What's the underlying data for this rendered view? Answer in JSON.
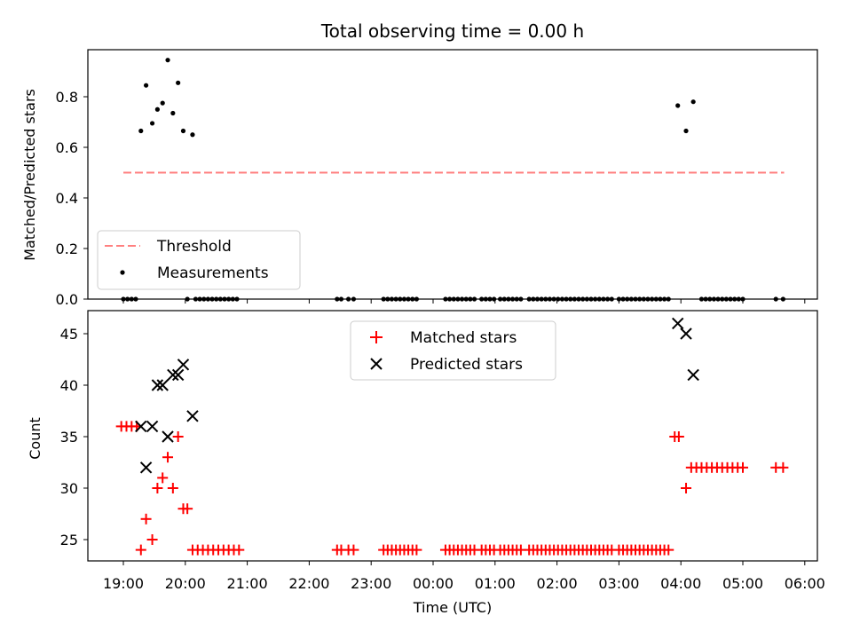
{
  "chart_data": [
    {
      "type": "scatter",
      "title": "Total observing time = 0.00 h",
      "ylabel": "Matched/Predicted stars",
      "xlabel": "",
      "ylim": [
        0,
        1.0
      ],
      "yticks": [
        "0.0",
        "0.2",
        "0.4",
        "0.6",
        "0.8"
      ],
      "threshold": {
        "name": "Threshold",
        "value": 0.5,
        "x_start": "19:00",
        "x_end": "05:40",
        "color": "#ff8080"
      },
      "measurements": {
        "name": "Measurements",
        "color": "#000000",
        "points": [
          [
            "19:17",
            0.665
          ],
          [
            "19:22",
            0.845
          ],
          [
            "19:28",
            0.695
          ],
          [
            "19:33",
            0.75
          ],
          [
            "19:38",
            0.775
          ],
          [
            "19:43",
            0.945
          ],
          [
            "19:48",
            0.735
          ],
          [
            "19:53",
            0.855
          ],
          [
            "19:58",
            0.665
          ],
          [
            "20:07",
            0.65
          ],
          [
            "03:57",
            0.765
          ],
          [
            "04:05",
            0.665
          ],
          [
            "04:12",
            0.78
          ]
        ],
        "zero_times": [
          "19:00",
          "19:04",
          "19:08",
          "19:12",
          "20:02",
          "20:10",
          "20:14",
          "20:18",
          "20:22",
          "20:26",
          "20:30",
          "20:34",
          "20:38",
          "20:42",
          "20:46",
          "20:50",
          "22:27",
          "22:31",
          "22:38",
          "22:43",
          "23:12",
          "23:16",
          "23:20",
          "23:24",
          "23:28",
          "23:32",
          "23:36",
          "23:40",
          "23:44",
          "00:12",
          "00:16",
          "00:20",
          "00:24",
          "00:28",
          "00:32",
          "00:36",
          "00:40",
          "00:47",
          "00:51",
          "00:55",
          "00:59",
          "01:05",
          "01:09",
          "01:13",
          "01:17",
          "01:21",
          "01:25",
          "01:33",
          "01:37",
          "01:41",
          "01:45",
          "01:49",
          "01:53",
          "01:57",
          "02:01",
          "02:05",
          "02:09",
          "02:13",
          "02:17",
          "02:21",
          "02:25",
          "02:29",
          "02:33",
          "02:37",
          "02:41",
          "02:45",
          "02:49",
          "02:53",
          "03:00",
          "03:04",
          "03:08",
          "03:12",
          "03:16",
          "03:20",
          "03:24",
          "03:28",
          "03:32",
          "03:36",
          "03:40",
          "03:44",
          "03:48",
          "04:20",
          "04:24",
          "04:28",
          "04:32",
          "04:36",
          "04:40",
          "04:44",
          "04:48",
          "04:52",
          "04:56",
          "05:00",
          "05:32",
          "05:39"
        ]
      },
      "legend_position": "lower-left",
      "grid": false
    },
    {
      "type": "scatter",
      "title": "",
      "ylabel": "Count",
      "xlabel": "Time (UTC)",
      "ylim": [
        23,
        47.5
      ],
      "yticks": [
        "25",
        "30",
        "35",
        "40",
        "45"
      ],
      "x_ticks": [
        "19:00",
        "20:00",
        "21:00",
        "22:00",
        "23:00",
        "00:00",
        "01:00",
        "02:00",
        "03:00",
        "04:00",
        "05:00",
        "06:00"
      ],
      "series": [
        {
          "name": "Matched stars",
          "marker": "plus",
          "color": "#ff0000",
          "points": [
            [
              "18:58",
              36
            ],
            [
              "19:03",
              36
            ],
            [
              "19:08",
              36
            ],
            [
              "19:13",
              36
            ],
            [
              "19:17",
              24
            ],
            [
              "19:22",
              27
            ],
            [
              "19:28",
              25
            ],
            [
              "19:33",
              30
            ],
            [
              "19:38",
              31
            ],
            [
              "19:43",
              33
            ],
            [
              "19:48",
              30
            ],
            [
              "19:53",
              35
            ],
            [
              "19:58",
              28
            ],
            [
              "20:02",
              28
            ],
            [
              "20:07",
              24
            ],
            [
              "20:12",
              24
            ],
            [
              "20:17",
              24
            ],
            [
              "20:22",
              24
            ],
            [
              "20:27",
              24
            ],
            [
              "20:32",
              24
            ],
            [
              "20:37",
              24
            ],
            [
              "20:42",
              24
            ],
            [
              "20:47",
              24
            ],
            [
              "20:52",
              24
            ],
            [
              "22:27",
              24
            ],
            [
              "22:31",
              24
            ],
            [
              "22:38",
              24
            ],
            [
              "22:43",
              24
            ],
            [
              "23:12",
              24
            ],
            [
              "23:16",
              24
            ],
            [
              "23:20",
              24
            ],
            [
              "23:24",
              24
            ],
            [
              "23:28",
              24
            ],
            [
              "23:32",
              24
            ],
            [
              "23:36",
              24
            ],
            [
              "23:40",
              24
            ],
            [
              "23:44",
              24
            ],
            [
              "00:12",
              24
            ],
            [
              "00:16",
              24
            ],
            [
              "00:20",
              24
            ],
            [
              "00:24",
              24
            ],
            [
              "00:28",
              24
            ],
            [
              "00:32",
              24
            ],
            [
              "00:36",
              24
            ],
            [
              "00:40",
              24
            ],
            [
              "00:47",
              24
            ],
            [
              "00:51",
              24
            ],
            [
              "00:55",
              24
            ],
            [
              "00:59",
              24
            ],
            [
              "01:05",
              24
            ],
            [
              "01:09",
              24
            ],
            [
              "01:13",
              24
            ],
            [
              "01:17",
              24
            ],
            [
              "01:21",
              24
            ],
            [
              "01:25",
              24
            ],
            [
              "01:33",
              24
            ],
            [
              "01:37",
              24
            ],
            [
              "01:41",
              24
            ],
            [
              "01:45",
              24
            ],
            [
              "01:49",
              24
            ],
            [
              "01:53",
              24
            ],
            [
              "01:57",
              24
            ],
            [
              "02:01",
              24
            ],
            [
              "02:05",
              24
            ],
            [
              "02:09",
              24
            ],
            [
              "02:13",
              24
            ],
            [
              "02:17",
              24
            ],
            [
              "02:21",
              24
            ],
            [
              "02:25",
              24
            ],
            [
              "02:29",
              24
            ],
            [
              "02:33",
              24
            ],
            [
              "02:37",
              24
            ],
            [
              "02:41",
              24
            ],
            [
              "02:45",
              24
            ],
            [
              "02:49",
              24
            ],
            [
              "02:53",
              24
            ],
            [
              "03:00",
              24
            ],
            [
              "03:04",
              24
            ],
            [
              "03:08",
              24
            ],
            [
              "03:12",
              24
            ],
            [
              "03:16",
              24
            ],
            [
              "03:20",
              24
            ],
            [
              "03:24",
              24
            ],
            [
              "03:28",
              24
            ],
            [
              "03:32",
              24
            ],
            [
              "03:36",
              24
            ],
            [
              "03:40",
              24
            ],
            [
              "03:44",
              24
            ],
            [
              "03:48",
              24
            ],
            [
              "03:54",
              35
            ],
            [
              "03:58",
              35
            ],
            [
              "04:05",
              30
            ],
            [
              "04:10",
              32
            ],
            [
              "04:15",
              32
            ],
            [
              "04:20",
              32
            ],
            [
              "04:25",
              32
            ],
            [
              "04:30",
              32
            ],
            [
              "04:35",
              32
            ],
            [
              "04:40",
              32
            ],
            [
              "04:45",
              32
            ],
            [
              "04:50",
              32
            ],
            [
              "04:55",
              32
            ],
            [
              "05:00",
              32
            ],
            [
              "05:32",
              32
            ],
            [
              "05:39",
              32
            ]
          ]
        },
        {
          "name": "Predicted stars",
          "marker": "x",
          "color": "#000000",
          "points": [
            [
              "19:17",
              36
            ],
            [
              "19:22",
              32
            ],
            [
              "19:28",
              36
            ],
            [
              "19:33",
              40
            ],
            [
              "19:38",
              40
            ],
            [
              "19:43",
              35
            ],
            [
              "19:48",
              41
            ],
            [
              "19:53",
              41
            ],
            [
              "19:58",
              42
            ],
            [
              "20:07",
              37
            ],
            [
              "03:57",
              46
            ],
            [
              "04:05",
              45
            ],
            [
              "04:12",
              41
            ]
          ]
        }
      ],
      "legend_position": "upper-center",
      "grid": false
    }
  ]
}
